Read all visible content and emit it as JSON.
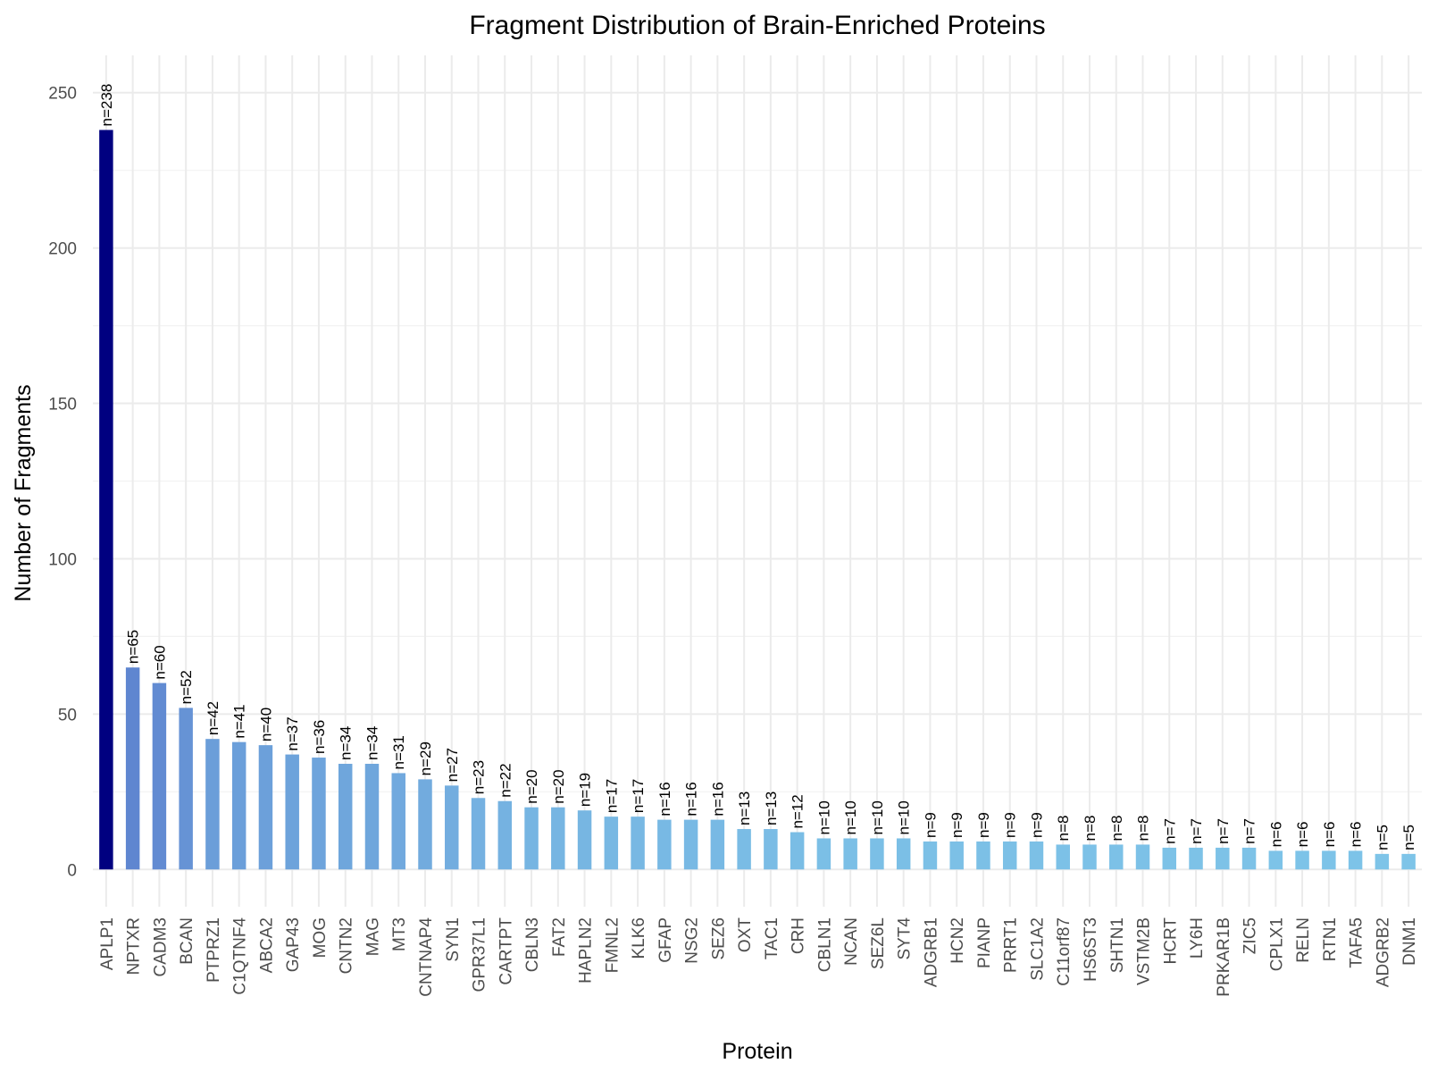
{
  "chart_data": {
    "type": "bar",
    "title": "Fragment Distribution of Brain-Enriched Proteins",
    "xlabel": "Protein",
    "ylabel": "Number of Fragments",
    "ylim": [
      -12,
      262
    ],
    "yticks": [
      0,
      50,
      100,
      150,
      200,
      250
    ],
    "grid": true,
    "legend": "none",
    "label_prefix": "n=",
    "colors": {
      "max": "#000080",
      "high": "#5f86d0",
      "low": "#7ec4e8"
    },
    "categories": [
      "APLP1",
      "NPTXR",
      "CADM3",
      "BCAN",
      "PTPRZ1",
      "C1QTNF4",
      "ABCA2",
      "GAP43",
      "MOG",
      "CNTN2",
      "MAG",
      "MT3",
      "CNTNAP4",
      "SYN1",
      "GPR37L1",
      "CARTPT",
      "CBLN3",
      "FAT2",
      "HAPLN2",
      "FMNL2",
      "KLK6",
      "GFAP",
      "NSG2",
      "SEZ6",
      "OXT",
      "TAC1",
      "CRH",
      "CBLN1",
      "NCAN",
      "SEZ6L",
      "SYT4",
      "ADGRB1",
      "HCN2",
      "PIANP",
      "PRRT1",
      "SLC1A2",
      "C11orf87",
      "HS6ST3",
      "SHTN1",
      "VSTM2B",
      "HCRT",
      "LY6H",
      "PRKAR1B",
      "ZIC5",
      "CPLX1",
      "RELN",
      "RTN1",
      "TAFA5",
      "ADGRB2",
      "DNM1"
    ],
    "values": [
      238,
      65,
      60,
      52,
      42,
      41,
      40,
      37,
      36,
      34,
      34,
      31,
      29,
      27,
      23,
      22,
      20,
      20,
      19,
      17,
      17,
      16,
      16,
      16,
      13,
      13,
      12,
      10,
      10,
      10,
      10,
      9,
      9,
      9,
      9,
      9,
      8,
      8,
      8,
      8,
      7,
      7,
      7,
      7,
      6,
      6,
      6,
      6,
      5,
      5
    ]
  }
}
